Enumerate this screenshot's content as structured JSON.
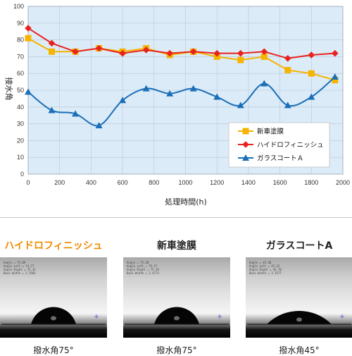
{
  "chart_data": {
    "type": "line",
    "xlabel": "処理時間(h)",
    "ylabel": "接水角",
    "xlim": [
      0,
      2000
    ],
    "ylim": [
      0,
      100
    ],
    "x_ticks": [
      "0",
      "200",
      "400",
      "600",
      "800",
      "1000",
      "1200",
      "1400",
      "1600",
      "1800",
      "2000"
    ],
    "y_ticks": [
      "0",
      "10",
      "20",
      "30",
      "40",
      "50",
      "60",
      "70",
      "80",
      "90",
      "100"
    ],
    "grid": true,
    "legend_position": "bottom-right",
    "series": [
      {
        "name": "新車塗膜",
        "color": "#f5b400",
        "marker": "square",
        "smooth": false,
        "x": [
          0,
          150,
          300,
          450,
          600,
          750,
          900,
          1050,
          1200,
          1350,
          1500,
          1650,
          1800,
          1950
        ],
        "y": [
          81,
          73,
          73,
          75,
          73,
          75,
          71,
          73,
          70,
          68,
          70,
          62,
          60,
          56
        ]
      },
      {
        "name": "ハイドロフィニッシュ",
        "color": "#e8231e",
        "marker": "diamond",
        "smooth": false,
        "x": [
          0,
          150,
          300,
          450,
          600,
          750,
          900,
          1050,
          1200,
          1350,
          1500,
          1650,
          1800,
          1950
        ],
        "y": [
          87,
          78,
          73,
          75,
          72,
          74,
          72,
          73,
          72,
          72,
          73,
          69,
          71,
          72
        ]
      },
      {
        "name": "ガラスコートＡ",
        "color": "#1a6fb8",
        "marker": "triangle",
        "smooth": true,
        "x": [
          0,
          150,
          300,
          450,
          600,
          750,
          900,
          1050,
          1200,
          1350,
          1500,
          1650,
          1800,
          1950
        ],
        "y": [
          49,
          38,
          36,
          29,
          44,
          51,
          48,
          51,
          46,
          41,
          54,
          41,
          46,
          58
        ]
      }
    ]
  },
  "photos": [
    {
      "title": "ハイドロフィニッシュ",
      "title_color": "#f08c00",
      "caption": "撥水角75°",
      "contact_angle": 75,
      "info": [
        "Angle = 75.09",
        "Angle Left = 74.77",
        "Angle Right = 75.41",
        "Base Width = 2.3501"
      ]
    },
    {
      "title": "新車塗膜",
      "title_color": "#222222",
      "caption": "撥水角75°",
      "contact_angle": 75,
      "info": [
        "Angle = 75.28",
        "Angle Left = 75.17",
        "Angle Right = 75.39",
        "Base Width = 2.4773"
      ]
    },
    {
      "title": "ガラスコートA",
      "title_color": "#222222",
      "caption": "撥水角45°",
      "contact_angle": 45,
      "info": [
        "Angle = 45.46",
        "Angle Left = 45.22",
        "Angle Right = 45.70",
        "Base Width = 3.1577"
      ]
    }
  ]
}
